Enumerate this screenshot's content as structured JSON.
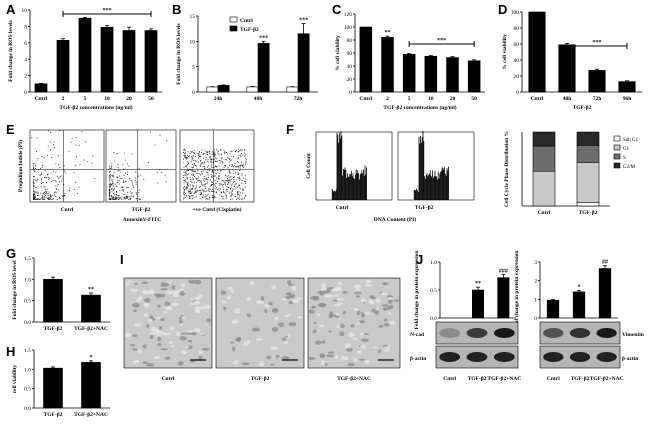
{
  "panel_letters": {
    "A": "A",
    "B": "B",
    "C": "C",
    "D": "D",
    "E": "E",
    "F": "F",
    "G": "G",
    "H": "H",
    "I": "I",
    "J": "J"
  },
  "chart_data": [
    {
      "id": "A",
      "type": "bar",
      "categories": [
        "Cntrl",
        "2",
        "5",
        "10",
        "20",
        "50"
      ],
      "values": [
        1.0,
        6.3,
        9.0,
        7.9,
        7.5,
        7.5
      ],
      "errors": [
        0.05,
        0.2,
        0.1,
        0.2,
        0.4,
        0.2
      ],
      "colors": [
        "#000000",
        "#000000",
        "#000000",
        "#000000",
        "#000000",
        "#000000"
      ],
      "ylabel": "Fold change in ROS levels",
      "xlabel": "TGF-β2  concentrations  (ng/ml)",
      "ylim": [
        0,
        10
      ],
      "yticks": [
        "0",
        "2",
        "4",
        "6",
        "8",
        "10"
      ],
      "bracket": {
        "from": 1,
        "to": 5,
        "label": "***"
      }
    },
    {
      "id": "B",
      "type": "bar",
      "categories": [
        "24h",
        "48h",
        "72h"
      ],
      "series": [
        {
          "name": "Cntrl",
          "values": [
            1.0,
            1.0,
            1.0
          ],
          "errors": [
            0.05,
            0.1,
            0.05
          ],
          "color": "#ffffff"
        },
        {
          "name": "TGF-β2",
          "values": [
            1.3,
            9.6,
            11.5
          ],
          "errors": [
            0.1,
            0.4,
            2.0
          ],
          "color": "#000000"
        }
      ],
      "marks": [
        "",
        "***",
        "***"
      ],
      "ylabel": "Fold change in ROS levels",
      "ylim": [
        0,
        15
      ],
      "yticks": [
        "0",
        "5",
        "10",
        "15"
      ],
      "legend": "top-left"
    },
    {
      "id": "C",
      "type": "bar",
      "categories": [
        "Cntrl",
        "2",
        "5",
        "10",
        "20",
        "50"
      ],
      "values": [
        100,
        84,
        58,
        55,
        53,
        48
      ],
      "errors": [
        0,
        2,
        1,
        1,
        1.5,
        1.5
      ],
      "colors": [
        "#000000",
        "#000000",
        "#000000",
        "#000000",
        "#000000",
        "#000000"
      ],
      "ylabel": "% cell viability",
      "xlabel": "TGF-β2  concentrations  (ng/ml)",
      "ylim": [
        0,
        120
      ],
      "yticks": [
        "0",
        "20",
        "40",
        "60",
        "80",
        "100",
        "120"
      ],
      "marks": [
        "",
        "**",
        "",
        "",
        "",
        ""
      ],
      "bracket": {
        "from": 2,
        "to": 5,
        "label": "***"
      }
    },
    {
      "id": "D",
      "type": "bar",
      "categories": [
        "Cntrl",
        "48h",
        "72h",
        "96h"
      ],
      "values": [
        100,
        59,
        27,
        13
      ],
      "errors": [
        0,
        1.5,
        1.5,
        1
      ],
      "colors": [
        "#000000",
        "#000000",
        "#000000",
        "#000000"
      ],
      "ylabel": "% cell viability",
      "xlabel": "TGF-β2",
      "ylim": [
        0,
        100
      ],
      "yticks": [
        "0",
        "20",
        "40",
        "60",
        "80",
        "100"
      ],
      "bracket": {
        "from": 1,
        "to": 3,
        "label": "***"
      }
    },
    {
      "id": "F-bar",
      "type": "bar",
      "categories": [
        "Cntrl",
        "TGF-β2"
      ],
      "series": [
        {
          "name": "Sub G1",
          "values": [
            0,
            5
          ],
          "color": "#ffffff"
        },
        {
          "name": "G1",
          "values": [
            47,
            54
          ],
          "color": "#c8c8c8"
        },
        {
          "name": "S",
          "values": [
            34,
            23
          ],
          "color": "#6e6e6e"
        },
        {
          "name": "G2/M",
          "values": [
            19,
            18
          ],
          "color": "#2a2a2a"
        }
      ],
      "stacked": true,
      "ylabel": "Cell Cycle Phase Distribution %",
      "ylim": [
        0,
        100
      ],
      "legend": "right"
    },
    {
      "id": "G",
      "type": "bar",
      "categories": [
        "TGF-β2",
        "TGF-β2+NAC"
      ],
      "values": [
        1.0,
        0.63
      ],
      "errors": [
        0.05,
        0.05
      ],
      "colors": [
        "#000000",
        "#000000"
      ],
      "marks": [
        "",
        "**"
      ],
      "ylabel": "Fold change in ROS level",
      "ylim": [
        0,
        1.5
      ],
      "yticks": [
        "0.0",
        "0.5",
        "1.0",
        "1.5"
      ]
    },
    {
      "id": "H",
      "type": "bar",
      "categories": [
        "TGF-β2",
        "TGF-β2+NAC"
      ],
      "values": [
        1.03,
        1.18
      ],
      "errors": [
        0.03,
        0.04
      ],
      "colors": [
        "#000000",
        "#000000"
      ],
      "marks": [
        "",
        "*"
      ],
      "ylabel": "cell viability",
      "ylim": [
        0,
        1.5
      ],
      "yticks": [
        "0.0",
        "0.5",
        "1.0",
        "1.5"
      ]
    },
    {
      "id": "J1",
      "type": "bar",
      "categories": [
        "Cntrl",
        "TGF-β2",
        "TGF-β2+NAC"
      ],
      "values": [
        0,
        0.5,
        0.72
      ],
      "errors": [
        0,
        0.05,
        0.06
      ],
      "colors": [
        "#000000",
        "#000000",
        "#000000"
      ],
      "marks": [
        "",
        "**",
        "###"
      ],
      "ylabel": "Fold change in protein expression",
      "ylim": [
        0,
        1.0
      ],
      "yticks": [
        "0.0",
        "0.5",
        "1.0"
      ]
    },
    {
      "id": "J2",
      "type": "bar",
      "categories": [
        "Cntrl",
        "TGF-β2",
        "TGF-β2+NAC"
      ],
      "values": [
        0.95,
        1.4,
        2.65
      ],
      "errors": [
        0.04,
        0.08,
        0.15
      ],
      "colors": [
        "#000000",
        "#000000",
        "#000000"
      ],
      "marks": [
        "",
        "*",
        "##"
      ],
      "ylabel": "Fold change in protein expression",
      "ylim": [
        0,
        3
      ],
      "yticks": [
        "0",
        "1",
        "2",
        "3"
      ]
    }
  ],
  "flow_E": {
    "xlabel": "AnnexinV-FITC",
    "ylabel": "Propidium Iodide (PI)",
    "labels": [
      "Cntrl",
      "TGF-β2",
      "+ve Cntrl (Cisplatin)"
    ],
    "quadrants": [
      "UL",
      "UR",
      "LL",
      "LR"
    ]
  },
  "histo_F": {
    "xlabel": "DNA Content (PI)",
    "ylabel": "Cell Count",
    "labels": [
      "Cntrl",
      "TGF-β2"
    ]
  },
  "micro_I": {
    "labels": [
      "Cntrl",
      "TGF-β2",
      "TGF-β2+NAC"
    ]
  },
  "blot_J": {
    "protein1": "N-cad",
    "protein2": "Vimentin",
    "loading": "β-actin",
    "lanes": [
      "Cntrl",
      "TGF-β2",
      "TGF-β2+NAC"
    ]
  }
}
